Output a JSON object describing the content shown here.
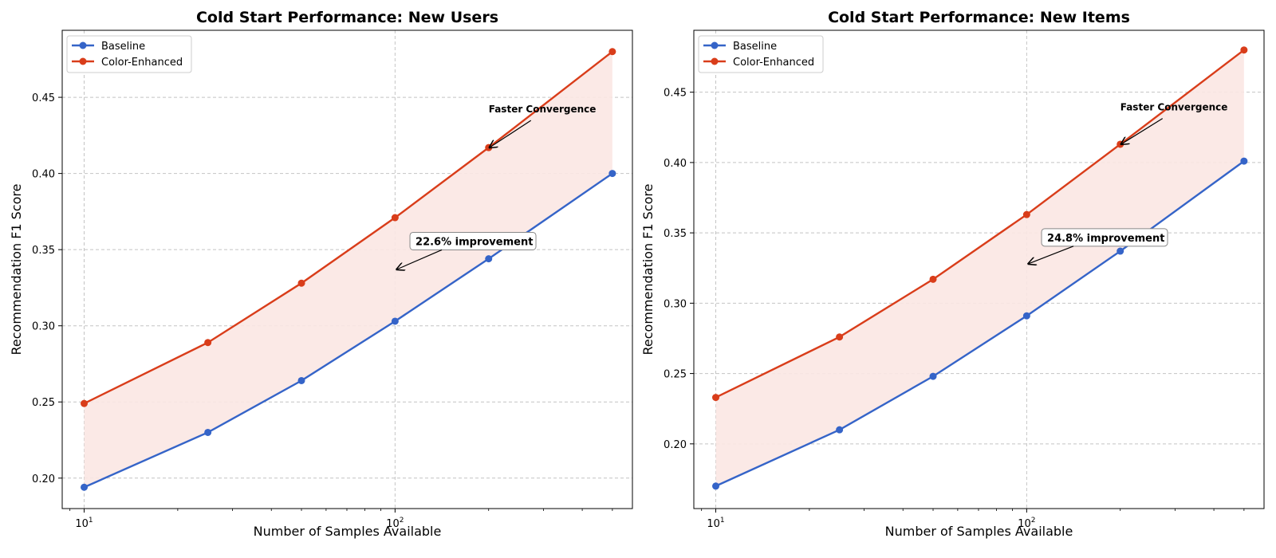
{
  "colors": {
    "baseline": "#3564c8",
    "enhanced": "#d93d1a",
    "fill": "#fbe7e3",
    "grid": "#c4c4c4"
  },
  "chart_data": [
    {
      "type": "line",
      "title": "Cold Start Performance: New Users",
      "xlabel": "Number of Samples Available",
      "ylabel": "Recommendation F1 Score",
      "xscale": "log",
      "xlim": [
        8.5,
        580
      ],
      "ylim": [
        0.18,
        0.494
      ],
      "yticks": [
        0.2,
        0.25,
        0.3,
        0.35,
        0.4,
        0.45
      ],
      "ytick_labels": [
        "0.20",
        "0.25",
        "0.30",
        "0.35",
        "0.40",
        "0.45"
      ],
      "xticks": [
        10,
        100
      ],
      "xtick_labels": [
        {
          "base": "10",
          "exp": "1"
        },
        {
          "base": "10",
          "exp": "2"
        }
      ],
      "grid": true,
      "legend": "top-left",
      "x": [
        10,
        25,
        50,
        100,
        200,
        500
      ],
      "series": [
        {
          "name": "Baseline",
          "values": [
            0.194,
            0.23,
            0.264,
            0.303,
            0.344,
            0.4
          ]
        },
        {
          "name": "Color-Enhanced",
          "values": [
            0.249,
            0.289,
            0.328,
            0.371,
            0.417,
            0.48
          ]
        }
      ],
      "annotations": [
        {
          "text": "Faster Convergence",
          "x": 200,
          "y": 0.417,
          "text_x": 200,
          "text_y": 0.44,
          "boxed": false
        },
        {
          "text": "22.6% improvement",
          "x": 100,
          "y": 0.337,
          "text_x": 115,
          "text_y": 0.3535,
          "boxed": true
        }
      ]
    },
    {
      "type": "line",
      "title": "Cold Start Performance: New Items",
      "xlabel": "Number of Samples Available",
      "ylabel": "Recommendation F1 Score",
      "xscale": "log",
      "xlim": [
        8.5,
        580
      ],
      "ylim": [
        0.154,
        0.494
      ],
      "yticks": [
        0.2,
        0.25,
        0.3,
        0.35,
        0.4,
        0.45
      ],
      "ytick_labels": [
        "0.20",
        "0.25",
        "0.30",
        "0.35",
        "0.40",
        "0.45"
      ],
      "xticks": [
        10,
        100
      ],
      "xtick_labels": [
        {
          "base": "10",
          "exp": "1"
        },
        {
          "base": "10",
          "exp": "2"
        }
      ],
      "grid": true,
      "legend": "top-left",
      "x": [
        10,
        25,
        50,
        100,
        200,
        500
      ],
      "series": [
        {
          "name": "Baseline",
          "values": [
            0.17,
            0.21,
            0.248,
            0.291,
            0.337,
            0.401
          ]
        },
        {
          "name": "Color-Enhanced",
          "values": [
            0.233,
            0.276,
            0.317,
            0.363,
            0.413,
            0.48
          ]
        }
      ],
      "annotations": [
        {
          "text": "Faster Convergence",
          "x": 200,
          "y": 0.413,
          "text_x": 200,
          "text_y": 0.437,
          "boxed": false
        },
        {
          "text": "24.8% improvement",
          "x": 100,
          "y": 0.328,
          "text_x": 115,
          "text_y": 0.3445,
          "boxed": true
        }
      ]
    }
  ]
}
